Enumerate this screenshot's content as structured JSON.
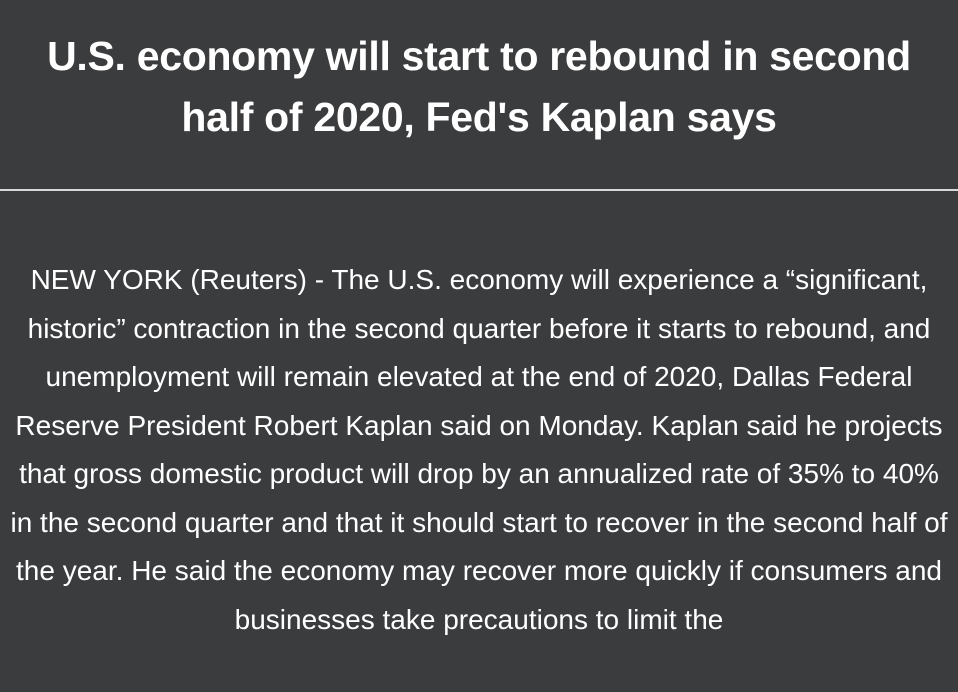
{
  "article": {
    "headline": "U.S. economy will start to rebound in second half of 2020, Fed's Kaplan says",
    "body": "NEW YORK (Reuters) - The U.S. economy will experience a “significant, historic” contraction in the second quarter before it starts to rebound, and unemployment will remain elevated at the end of 2020, Dallas Federal Reserve President Robert Kaplan said on Monday. Kaplan said he projects that gross domestic product will drop by an annualized rate of 35% to 40% in the second quarter and that it should start to recover in the second half of the year. He said the economy may recover more quickly if consumers and businesses take precautions to limit the"
  },
  "colors": {
    "background": "#3b3c3e",
    "text": "#ffffff",
    "divider": "#d9d9d9"
  }
}
